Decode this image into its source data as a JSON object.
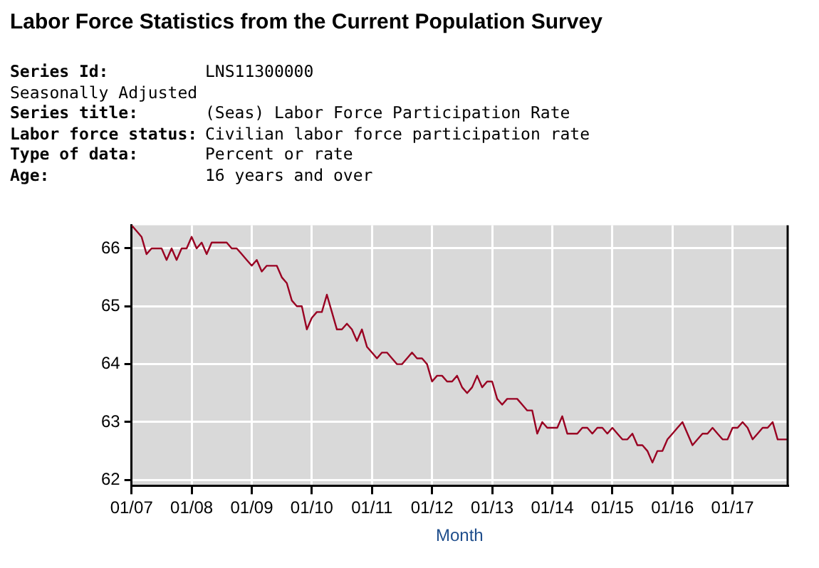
{
  "chart_data": {
    "type": "line",
    "title": "Labor Force Statistics from the Current Population Survey",
    "annotations": [
      "Series Id: LNS11300000",
      "Seasonally Adjusted",
      "Series title: (Seas) Labor Force Participation Rate",
      "Labor force status: Civilian labor force participation rate",
      "Type of data: Percent or rate",
      "Age: 16 years and over"
    ],
    "xlabel": "Month",
    "x": [
      "2007-01",
      "2007-02",
      "2007-03",
      "2007-04",
      "2007-05",
      "2007-06",
      "2007-07",
      "2007-08",
      "2007-09",
      "2007-10",
      "2007-11",
      "2007-12",
      "2008-01",
      "2008-02",
      "2008-03",
      "2008-04",
      "2008-05",
      "2008-06",
      "2008-07",
      "2008-08",
      "2008-09",
      "2008-10",
      "2008-11",
      "2008-12",
      "2009-01",
      "2009-02",
      "2009-03",
      "2009-04",
      "2009-05",
      "2009-06",
      "2009-07",
      "2009-08",
      "2009-09",
      "2009-10",
      "2009-11",
      "2009-12",
      "2010-01",
      "2010-02",
      "2010-03",
      "2010-04",
      "2010-05",
      "2010-06",
      "2010-07",
      "2010-08",
      "2010-09",
      "2010-10",
      "2010-11",
      "2010-12",
      "2011-01",
      "2011-02",
      "2011-03",
      "2011-04",
      "2011-05",
      "2011-06",
      "2011-07",
      "2011-08",
      "2011-09",
      "2011-10",
      "2011-11",
      "2011-12",
      "2012-01",
      "2012-02",
      "2012-03",
      "2012-04",
      "2012-05",
      "2012-06",
      "2012-07",
      "2012-08",
      "2012-09",
      "2012-10",
      "2012-11",
      "2012-12",
      "2013-01",
      "2013-02",
      "2013-03",
      "2013-04",
      "2013-05",
      "2013-06",
      "2013-07",
      "2013-08",
      "2013-09",
      "2013-10",
      "2013-11",
      "2013-12",
      "2014-01",
      "2014-02",
      "2014-03",
      "2014-04",
      "2014-05",
      "2014-06",
      "2014-07",
      "2014-08",
      "2014-09",
      "2014-10",
      "2014-11",
      "2014-12",
      "2015-01",
      "2015-02",
      "2015-03",
      "2015-04",
      "2015-05",
      "2015-06",
      "2015-07",
      "2015-08",
      "2015-09",
      "2015-10",
      "2015-11",
      "2015-12",
      "2016-01",
      "2016-02",
      "2016-03",
      "2016-04",
      "2016-05",
      "2016-06",
      "2016-07",
      "2016-08",
      "2016-09",
      "2016-10",
      "2016-11",
      "2016-12",
      "2017-01",
      "2017-02",
      "2017-03",
      "2017-04",
      "2017-05",
      "2017-06",
      "2017-07",
      "2017-08",
      "2017-09",
      "2017-10",
      "2017-11",
      "2017-12"
    ],
    "series": [
      {
        "color": "#990022",
        "values": [
          66.4,
          66.3,
          66.2,
          65.9,
          66.0,
          66.0,
          66.0,
          65.8,
          66.0,
          65.8,
          66.0,
          66.0,
          66.2,
          66.0,
          66.1,
          65.9,
          66.1,
          66.1,
          66.1,
          66.1,
          66.0,
          66.0,
          65.9,
          65.8,
          65.7,
          65.8,
          65.6,
          65.7,
          65.7,
          65.7,
          65.5,
          65.4,
          65.1,
          65.0,
          65.0,
          64.6,
          64.8,
          64.9,
          64.9,
          65.2,
          64.9,
          64.6,
          64.6,
          64.7,
          64.6,
          64.4,
          64.6,
          64.3,
          64.2,
          64.1,
          64.2,
          64.2,
          64.1,
          64.0,
          64.0,
          64.1,
          64.2,
          64.1,
          64.1,
          64.0,
          63.7,
          63.8,
          63.8,
          63.7,
          63.7,
          63.8,
          63.6,
          63.5,
          63.6,
          63.8,
          63.6,
          63.7,
          63.7,
          63.4,
          63.3,
          63.4,
          63.4,
          63.4,
          63.3,
          63.2,
          63.2,
          62.8,
          63.0,
          62.9,
          62.9,
          62.9,
          63.1,
          62.8,
          62.8,
          62.8,
          62.9,
          62.9,
          62.8,
          62.9,
          62.9,
          62.8,
          62.9,
          62.8,
          62.7,
          62.7,
          62.8,
          62.6,
          62.6,
          62.5,
          62.3,
          62.5,
          62.5,
          62.7,
          62.8,
          62.9,
          63.0,
          62.8,
          62.6,
          62.7,
          62.8,
          62.8,
          62.9,
          62.8,
          62.7,
          62.7,
          62.9,
          62.9,
          63.0,
          62.9,
          62.7,
          62.8,
          62.9,
          62.9,
          63.0,
          62.7,
          62.7,
          62.7
        ]
      }
    ],
    "xlim": [
      "2007-01",
      "2017-12"
    ],
    "xticks": [
      {
        "value": "2007-01",
        "label": "01/07"
      },
      {
        "value": "2008-01",
        "label": "01/08"
      },
      {
        "value": "2009-01",
        "label": "01/09"
      },
      {
        "value": "2010-01",
        "label": "01/10"
      },
      {
        "value": "2011-01",
        "label": "01/11"
      },
      {
        "value": "2012-01",
        "label": "01/12"
      },
      {
        "value": "2013-01",
        "label": "01/13"
      },
      {
        "value": "2014-01",
        "label": "01/14"
      },
      {
        "value": "2015-01",
        "label": "01/15"
      },
      {
        "value": "2016-01",
        "label": "01/16"
      },
      {
        "value": "2017-01",
        "label": "01/17"
      }
    ],
    "ylim": [
      61.9,
      66.4
    ],
    "yticks": [
      62,
      63,
      64,
      65,
      66
    ],
    "grid": true,
    "legend": false,
    "marker": "none",
    "line_style": "solid"
  }
}
